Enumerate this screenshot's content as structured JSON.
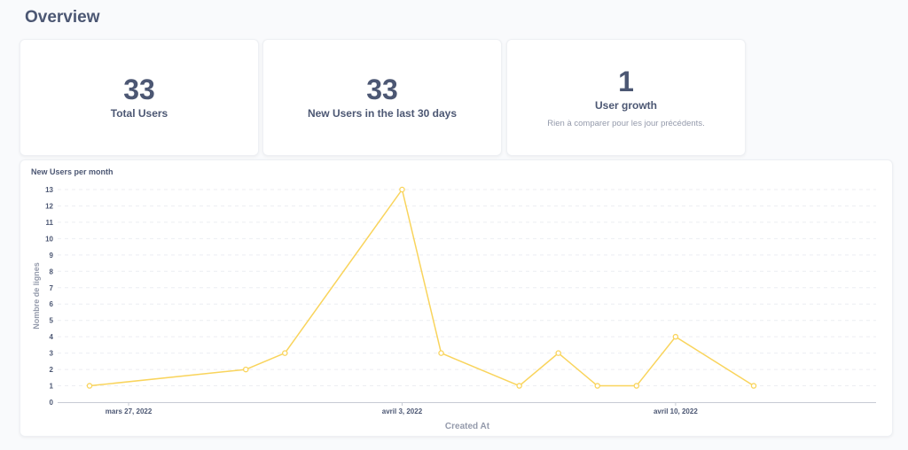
{
  "page": {
    "title": "Overview"
  },
  "cards": {
    "total_users": {
      "value": "33",
      "label": "Total Users"
    },
    "new_users_30": {
      "value": "33",
      "label": "New Users in the last 30 days"
    },
    "user_growth": {
      "value": "1",
      "label": "User growth",
      "sub": "Rien à comparer pour les jour précédents."
    }
  },
  "chart_title": "New Users per month",
  "colors": {
    "line": "#f9d45c",
    "text": "#4c5773",
    "muted": "#949aab"
  },
  "chart_data": {
    "type": "line",
    "title": "New Users per month",
    "xlabel": "Created At",
    "ylabel": "Nombre de lignes",
    "x": [
      "2022-03-26",
      "2022-03-30",
      "2022-03-31",
      "2022-04-03",
      "2022-04-04",
      "2022-04-06",
      "2022-04-07",
      "2022-04-08",
      "2022-04-09",
      "2022-04-10",
      "2022-04-12"
    ],
    "series": [
      {
        "values": [
          1,
          2,
          3,
          13,
          3,
          1,
          3,
          1,
          1,
          4,
          1
        ]
      }
    ],
    "x_ticks": [
      {
        "date": "2022-03-27",
        "label": "mars 27, 2022"
      },
      {
        "date": "2022-04-03",
        "label": "avril 3, 2022"
      },
      {
        "date": "2022-04-10",
        "label": "avril 10, 2022"
      }
    ],
    "y_ticks": [
      0,
      1,
      2,
      3,
      4,
      5,
      6,
      7,
      8,
      9,
      10,
      11,
      12,
      13
    ],
    "ylim": [
      0,
      13
    ],
    "grid": true
  }
}
